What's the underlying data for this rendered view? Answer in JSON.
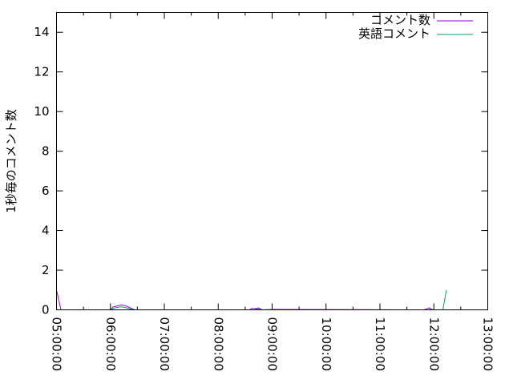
{
  "chart_data": {
    "type": "line",
    "title": "",
    "xlabel": "",
    "ylabel": "1秒毎のコメント数",
    "xlim": [
      "05:00:00",
      "13:00:00"
    ],
    "ylim": [
      0,
      15
    ],
    "x_ticks": [
      "05:00:00",
      "06:00:00",
      "07:00:00",
      "08:00:00",
      "09:00:00",
      "10:00:00",
      "11:00:00",
      "12:00:00",
      "13:00:00"
    ],
    "y_ticks": [
      "0",
      "2",
      "4",
      "6",
      "8",
      "10",
      "12",
      "14"
    ],
    "grid": false,
    "legend_position": "top-right",
    "series": [
      {
        "name": "コメント数",
        "color": "#9400d3",
        "points": [
          [
            "05:00:00",
            1.0
          ],
          [
            "05:05:00",
            0
          ],
          [
            "06:00:00",
            0
          ],
          [
            "06:03:00",
            0.15
          ],
          [
            "06:08:00",
            0.2
          ],
          [
            "06:12:00",
            0.25
          ],
          [
            "06:17:00",
            0.2
          ],
          [
            "06:22:00",
            0.1
          ],
          [
            "06:27:00",
            0
          ],
          [
            "08:35:00",
            0
          ],
          [
            "08:37:00",
            0.07
          ],
          [
            "08:42:00",
            0.07
          ],
          [
            "08:45:00",
            0.1
          ],
          [
            "08:49:00",
            0
          ],
          [
            "09:03:00",
            0.02
          ],
          [
            "09:06:00",
            0.02
          ],
          [
            "11:49:00",
            0
          ],
          [
            "11:52:00",
            0.05
          ],
          [
            "11:55:00",
            0.1
          ],
          [
            "11:58:00",
            0
          ],
          [
            "12:14:00",
            0
          ]
        ]
      },
      {
        "name": "英語コメント",
        "color": "#009e73",
        "points": [
          [
            "06:00:00",
            0
          ],
          [
            "06:05:00",
            0.1
          ],
          [
            "06:12:00",
            0.15
          ],
          [
            "06:18:00",
            0.1
          ],
          [
            "06:25:00",
            0
          ],
          [
            "08:40:00",
            0
          ],
          [
            "08:44:00",
            0.05
          ],
          [
            "08:48:00",
            0
          ],
          [
            "11:55:00",
            0
          ],
          [
            "11:57:00",
            0.05
          ],
          [
            "11:59:00",
            0
          ],
          [
            "12:10:00",
            0
          ],
          [
            "12:14:00",
            1.0
          ]
        ]
      }
    ]
  }
}
